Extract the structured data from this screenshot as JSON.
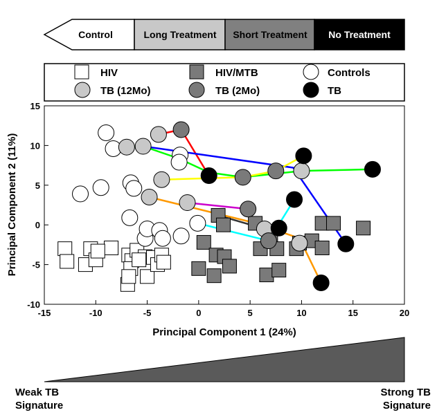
{
  "arrow_bar": {
    "labels": [
      "Control",
      "Long Treatment",
      "Short Treatment",
      "No Treatment"
    ],
    "colors": [
      "#ffffff",
      "#c8c8c8",
      "#808080",
      "#000000"
    ],
    "text_colors": [
      "#000000",
      "#000000",
      "#000000",
      "#ffffff"
    ]
  },
  "legend": {
    "items": [
      {
        "label": "HIV",
        "shape": "square",
        "fill": "#ffffff"
      },
      {
        "label": "HIV/MTB",
        "shape": "square",
        "fill": "#7a7a7a"
      },
      {
        "label": "Controls",
        "shape": "circle",
        "fill": "#ffffff"
      },
      {
        "label": "TB (12Mo)",
        "shape": "circle",
        "fill": "#c8c8c8"
      },
      {
        "label": "TB (2Mo)",
        "shape": "circle",
        "fill": "#7a7a7a"
      },
      {
        "label": "TB",
        "shape": "circle",
        "fill": "#000000"
      }
    ]
  },
  "signature": {
    "weak_line1": "Weak TB",
    "weak_line2": "Signature",
    "strong_line1": "Strong TB",
    "strong_line2": "Signature"
  },
  "chart_data": {
    "type": "scatter",
    "title": "",
    "xlabel": "Principal Component 1 (24%)",
    "ylabel": "Principal Component 2 (11%)",
    "xlim": [
      -15,
      20
    ],
    "ylim": [
      -10,
      15
    ],
    "xticks": [
      -15,
      -10,
      -5,
      0,
      5,
      10,
      15,
      20
    ],
    "yticks": [
      -10,
      -5,
      0,
      5,
      10,
      15
    ],
    "grid": false,
    "series": [
      {
        "name": "HIV",
        "shape": "square",
        "fill": "#ffffff",
        "points": [
          [
            -13,
            -3
          ],
          [
            -12.8,
            -4.6
          ],
          [
            -11,
            -5
          ],
          [
            -10.5,
            -3
          ],
          [
            -10,
            -4.4
          ],
          [
            -8.5,
            -2.9
          ],
          [
            -9.8,
            -3.3
          ],
          [
            -6.8,
            -3.8
          ],
          [
            -6.5,
            -4.5
          ],
          [
            -6.6,
            -5.5
          ],
          [
            -6.9,
            -7.5
          ],
          [
            -6,
            -3.2
          ],
          [
            -5.2,
            -4
          ],
          [
            -5.8,
            -4.4
          ],
          [
            -4.4,
            -4.1
          ],
          [
            -5,
            -6.5
          ],
          [
            -4,
            -5
          ],
          [
            -3.6,
            -3.8
          ],
          [
            -3.4,
            -4.7
          ],
          [
            -6.8,
            -6.5
          ]
        ]
      },
      {
        "name": "HIV/MTB",
        "shape": "square",
        "fill": "#7a7a7a",
        "points": [
          [
            0.5,
            -2.2
          ],
          [
            0,
            -5.5
          ],
          [
            1.5,
            -6.4
          ],
          [
            1.9,
            1.2
          ],
          [
            2.4,
            0
          ],
          [
            1.7,
            -3.8
          ],
          [
            2.5,
            -4
          ],
          [
            3,
            -5.2
          ],
          [
            5.5,
            0.2
          ],
          [
            6,
            -3
          ],
          [
            7,
            -2
          ],
          [
            7.6,
            -3
          ],
          [
            6.6,
            -6.3
          ],
          [
            7.8,
            -5.7
          ],
          [
            9.8,
            -2.3
          ],
          [
            9.5,
            -3
          ],
          [
            11,
            -2
          ],
          [
            12,
            0.2
          ],
          [
            13.1,
            0.2
          ],
          [
            12,
            -2.9
          ],
          [
            16,
            -0.4
          ]
        ]
      },
      {
        "name": "Controls",
        "shape": "circle",
        "fill": "#ffffff",
        "points": [
          [
            -9,
            11.6
          ],
          [
            -8.3,
            9.6
          ],
          [
            -9.5,
            4.7
          ],
          [
            -11.5,
            3.9
          ],
          [
            -6.6,
            5.3
          ],
          [
            -6.3,
            4.6
          ],
          [
            -6.7,
            0.9
          ],
          [
            -5.2,
            -1.7
          ],
          [
            -5,
            -0.5
          ],
          [
            -3.8,
            -0.7
          ],
          [
            -3.5,
            -1.7
          ],
          [
            -1.8,
            8.8
          ],
          [
            -1.9,
            7.9
          ],
          [
            -1.7,
            -1.4
          ],
          [
            -0.1,
            0.2
          ]
        ]
      },
      {
        "name": "TB (12Mo)",
        "shape": "circle",
        "fill": "#c8c8c8",
        "points": [
          [
            -7,
            9.8
          ],
          [
            -5.4,
            9.9
          ],
          [
            -3.9,
            11.4
          ],
          [
            -3.6,
            5.7
          ],
          [
            -4.8,
            3.5
          ],
          [
            -1.1,
            2.8
          ],
          [
            6.4,
            -0.5
          ],
          [
            10,
            6.8
          ],
          [
            9.8,
            -2.3
          ]
        ]
      },
      {
        "name": "TB (2Mo)",
        "shape": "circle",
        "fill": "#7a7a7a",
        "points": [
          [
            -1.7,
            12
          ],
          [
            4.3,
            6
          ],
          [
            4.8,
            2
          ],
          [
            7.5,
            6.8
          ],
          [
            6.8,
            -2
          ]
        ]
      },
      {
        "name": "TB",
        "shape": "circle",
        "fill": "#000000",
        "points": [
          [
            1,
            6.2
          ],
          [
            10.2,
            8.7
          ],
          [
            9.3,
            3.2
          ],
          [
            7.8,
            -0.4
          ],
          [
            14.3,
            -2.4
          ],
          [
            16.9,
            7
          ],
          [
            11.9,
            -7.3
          ]
        ]
      }
    ],
    "trajectories": [
      {
        "color": "#ff0000",
        "points": [
          [
            -3.9,
            11.4
          ],
          [
            -1.7,
            12
          ],
          [
            1,
            6.2
          ]
        ]
      },
      {
        "color": "#0000ff",
        "points": [
          [
            -5.4,
            9.9
          ],
          [
            9.2,
            7.2
          ],
          [
            14.3,
            -2.4
          ]
        ]
      },
      {
        "color": "#00ff00",
        "points": [
          [
            -7,
            9.8
          ],
          [
            -5.4,
            9.9
          ],
          [
            -2,
            8.4
          ],
          [
            1,
            6.6
          ],
          [
            4.3,
            6
          ],
          [
            10,
            6.8
          ],
          [
            16.9,
            7
          ]
        ]
      },
      {
        "color": "#ffff00",
        "points": [
          [
            -3.6,
            5.7
          ],
          [
            4.3,
            6
          ],
          [
            7.5,
            6.8
          ],
          [
            10.2,
            8.7
          ]
        ]
      },
      {
        "color": "#cc00cc",
        "points": [
          [
            -1.1,
            2.8
          ],
          [
            4.8,
            2
          ]
        ]
      },
      {
        "color": "#00ffff",
        "points": [
          [
            -0.1,
            0.2
          ],
          [
            6.8,
            -2
          ],
          [
            9.3,
            3.2
          ]
        ]
      },
      {
        "color": "#ff9900",
        "points": [
          [
            -4.8,
            3.5
          ],
          [
            5.6,
            0.2
          ],
          [
            9.8,
            -1.7
          ],
          [
            11.9,
            -7.3
          ]
        ]
      },
      {
        "color": "#333333",
        "points": [
          [
            1.9,
            1.2
          ],
          [
            6.4,
            -0.5
          ],
          [
            7.8,
            -0.4
          ]
        ]
      }
    ]
  }
}
